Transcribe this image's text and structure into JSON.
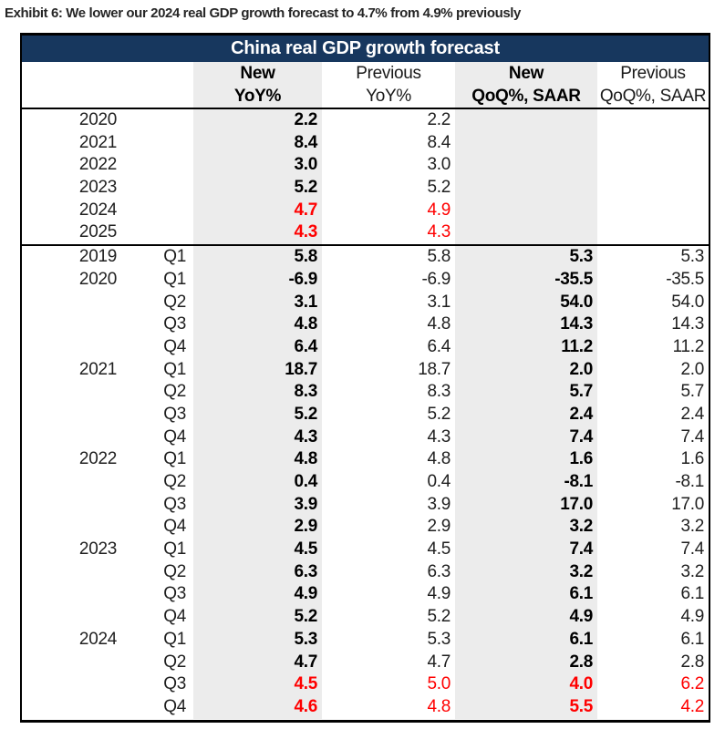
{
  "exhibit_title": "Exhibit 6: We lower our 2024 real GDP growth forecast to 4.7% from 4.9% previously",
  "colors": {
    "header_bg": "#17375E",
    "shaded_column": "#ECECEC",
    "revision_red": "#FF0000"
  },
  "chart_data": {
    "type": "table",
    "title": "China real GDP growth forecast",
    "column_headers": [
      {
        "line1": "New",
        "line2": "YoY%",
        "bold": true,
        "shaded": true
      },
      {
        "line1": "Previous",
        "line2": "YoY%",
        "bold": false,
        "shaded": false
      },
      {
        "line1": "New",
        "line2": "QoQ%, SAAR",
        "bold": true,
        "shaded": true
      },
      {
        "line1": "Previous",
        "line2": "QoQ%, SAAR",
        "bold": false,
        "shaded": false
      }
    ],
    "annual_rows": [
      {
        "year": "2020",
        "quarter": "",
        "values": [
          "2.2",
          "2.2",
          "",
          ""
        ],
        "red": false
      },
      {
        "year": "2021",
        "quarter": "",
        "values": [
          "8.4",
          "8.4",
          "",
          ""
        ],
        "red": false
      },
      {
        "year": "2022",
        "quarter": "",
        "values": [
          "3.0",
          "3.0",
          "",
          ""
        ],
        "red": false
      },
      {
        "year": "2023",
        "quarter": "",
        "values": [
          "5.2",
          "5.2",
          "",
          ""
        ],
        "red": false
      },
      {
        "year": "2024",
        "quarter": "",
        "values": [
          "4.7",
          "4.9",
          "",
          ""
        ],
        "red": true
      },
      {
        "year": "2025",
        "quarter": "",
        "values": [
          "4.3",
          "4.3",
          "",
          ""
        ],
        "red": true
      }
    ],
    "quarterly_rows": [
      {
        "year": "2019",
        "quarter": "Q1",
        "values": [
          "5.8",
          "5.8",
          "5.3",
          "5.3"
        ],
        "red": false
      },
      {
        "year": "2020",
        "quarter": "Q1",
        "values": [
          "-6.9",
          "-6.9",
          "-35.5",
          "-35.5"
        ],
        "red": false
      },
      {
        "year": "",
        "quarter": "Q2",
        "values": [
          "3.1",
          "3.1",
          "54.0",
          "54.0"
        ],
        "red": false
      },
      {
        "year": "",
        "quarter": "Q3",
        "values": [
          "4.8",
          "4.8",
          "14.3",
          "14.3"
        ],
        "red": false
      },
      {
        "year": "",
        "quarter": "Q4",
        "values": [
          "6.4",
          "6.4",
          "11.2",
          "11.2"
        ],
        "red": false
      },
      {
        "year": "2021",
        "quarter": "Q1",
        "values": [
          "18.7",
          "18.7",
          "2.0",
          "2.0"
        ],
        "red": false
      },
      {
        "year": "",
        "quarter": "Q2",
        "values": [
          "8.3",
          "8.3",
          "5.7",
          "5.7"
        ],
        "red": false
      },
      {
        "year": "",
        "quarter": "Q3",
        "values": [
          "5.2",
          "5.2",
          "2.4",
          "2.4"
        ],
        "red": false
      },
      {
        "year": "",
        "quarter": "Q4",
        "values": [
          "4.3",
          "4.3",
          "7.4",
          "7.4"
        ],
        "red": false
      },
      {
        "year": "2022",
        "quarter": "Q1",
        "values": [
          "4.8",
          "4.8",
          "1.6",
          "1.6"
        ],
        "red": false
      },
      {
        "year": "",
        "quarter": "Q2",
        "values": [
          "0.4",
          "0.4",
          "-8.1",
          "-8.1"
        ],
        "red": false
      },
      {
        "year": "",
        "quarter": "Q3",
        "values": [
          "3.9",
          "3.9",
          "17.0",
          "17.0"
        ],
        "red": false
      },
      {
        "year": "",
        "quarter": "Q4",
        "values": [
          "2.9",
          "2.9",
          "3.2",
          "3.2"
        ],
        "red": false
      },
      {
        "year": "2023",
        "quarter": "Q1",
        "values": [
          "4.5",
          "4.5",
          "7.4",
          "7.4"
        ],
        "red": false
      },
      {
        "year": "",
        "quarter": "Q2",
        "values": [
          "6.3",
          "6.3",
          "3.2",
          "3.2"
        ],
        "red": false
      },
      {
        "year": "",
        "quarter": "Q3",
        "values": [
          "4.9",
          "4.9",
          "6.1",
          "6.1"
        ],
        "red": false
      },
      {
        "year": "",
        "quarter": "Q4",
        "values": [
          "5.2",
          "5.2",
          "4.9",
          "4.9"
        ],
        "red": false
      },
      {
        "year": "2024",
        "quarter": "Q1",
        "values": [
          "5.3",
          "5.3",
          "6.1",
          "6.1"
        ],
        "red": false
      },
      {
        "year": "",
        "quarter": "Q2",
        "values": [
          "4.7",
          "4.7",
          "2.8",
          "2.8"
        ],
        "red": false
      },
      {
        "year": "",
        "quarter": "Q3",
        "values": [
          "4.5",
          "5.0",
          "4.0",
          "6.2"
        ],
        "red": true
      },
      {
        "year": "",
        "quarter": "Q4",
        "values": [
          "4.6",
          "4.8",
          "5.5",
          "4.2"
        ],
        "red": true
      }
    ]
  }
}
